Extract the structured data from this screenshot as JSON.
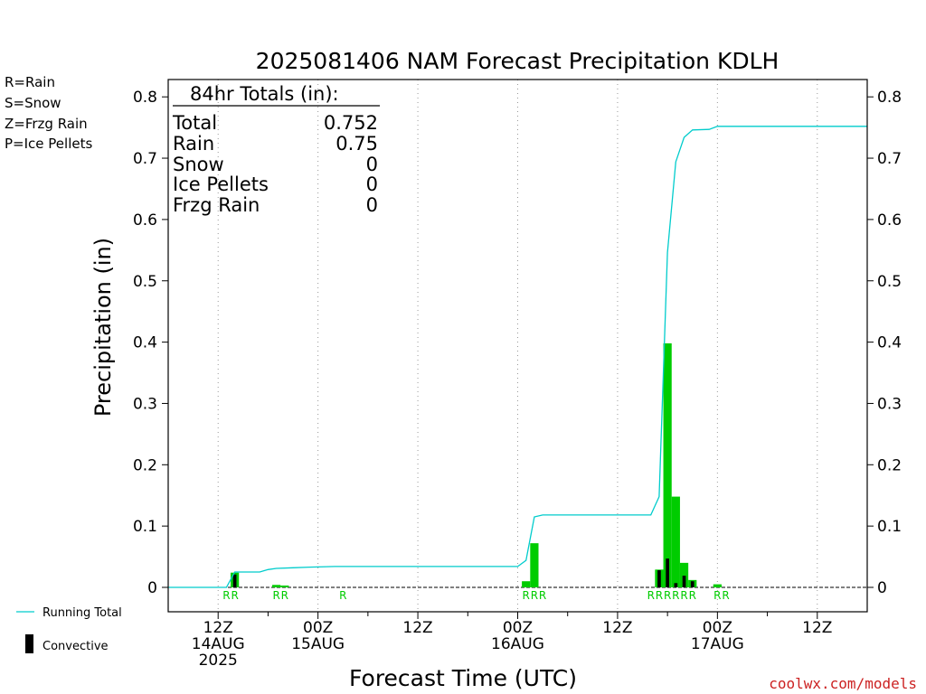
{
  "chart_data": {
    "type": "bar",
    "title": "2025081406 NAM Forecast Precipitation KDLH",
    "xlabel": "Forecast Time (UTC)",
    "ylabel": "Precipitation (in)",
    "ylim": [
      0,
      0.8
    ],
    "yticks": [
      "0",
      "0.1",
      "0.2",
      "0.3",
      "0.4",
      "0.5",
      "0.6",
      "0.7",
      "0.8"
    ],
    "xlim": [
      "2025-08-14 06Z",
      "2025-08-17 18Z"
    ],
    "grid": "x",
    "x_ticks": [
      {
        "line1": "12Z",
        "line2": "14AUG",
        "line3": "2025",
        "hour": 12
      },
      {
        "line1": "00Z",
        "line2": "15AUG",
        "line3": "",
        "hour": 24
      },
      {
        "line1": "12Z",
        "line2": "",
        "line3": "",
        "hour": 36
      },
      {
        "line1": "00Z",
        "line2": "16AUG",
        "line3": "",
        "hour": 48
      },
      {
        "line1": "12Z",
        "line2": "",
        "line3": "",
        "hour": 60
      },
      {
        "line1": "00Z",
        "line2": "17AUG",
        "line3": "",
        "hour": 72
      },
      {
        "line1": "12Z",
        "line2": "",
        "line3": "",
        "hour": 84
      }
    ],
    "precip_type_legend": [
      {
        "label": "R=Rain",
        "color": "#00cc00"
      },
      {
        "label": "S=Snow",
        "color": "#3333ff"
      },
      {
        "label": "Z=Frzg Rain",
        "color": "#ff8833"
      },
      {
        "label": "P=Ice Pellets",
        "color": "#ee1188"
      }
    ],
    "totals": {
      "header": "84hr Totals (in):",
      "rows": [
        {
          "label": "Total",
          "value": "0.752"
        },
        {
          "label": "Rain",
          "value": "0.75"
        },
        {
          "label": "Snow",
          "value": "0"
        },
        {
          "label": "Ice Pellets",
          "value": "0"
        },
        {
          "label": "Frzg Rain",
          "value": "0"
        }
      ]
    },
    "series": [
      {
        "name": "Precipitation",
        "color": "#00cc00",
        "points": [
          {
            "hour": 14,
            "value": 0.024
          },
          {
            "hour": 19,
            "value": 0.004
          },
          {
            "hour": 20,
            "value": 0.003
          },
          {
            "hour": 49,
            "value": 0.01
          },
          {
            "hour": 50,
            "value": 0.072
          },
          {
            "hour": 65,
            "value": 0.029
          },
          {
            "hour": 66,
            "value": 0.398
          },
          {
            "hour": 67,
            "value": 0.148
          },
          {
            "hour": 68,
            "value": 0.04
          },
          {
            "hour": 69,
            "value": 0.012
          },
          {
            "hour": 72,
            "value": 0.005
          }
        ]
      },
      {
        "name": "Convective",
        "color": "#000000",
        "points": [
          {
            "hour": 14,
            "value": 0.021
          },
          {
            "hour": 65,
            "value": 0.028
          },
          {
            "hour": 66,
            "value": 0.047
          },
          {
            "hour": 67,
            "value": 0.007
          },
          {
            "hour": 68,
            "value": 0.019
          },
          {
            "hour": 69,
            "value": 0.01
          }
        ]
      },
      {
        "name": "Running Total",
        "color": "#00cccc",
        "points": [
          {
            "hour": 6,
            "value": 0
          },
          {
            "hour": 13,
            "value": 0
          },
          {
            "hour": 14,
            "value": 0.025
          },
          {
            "hour": 17,
            "value": 0.025
          },
          {
            "hour": 18,
            "value": 0.029
          },
          {
            "hour": 19,
            "value": 0.031
          },
          {
            "hour": 21,
            "value": 0.032
          },
          {
            "hour": 23,
            "value": 0.033
          },
          {
            "hour": 26,
            "value": 0.034
          },
          {
            "hour": 48,
            "value": 0.034
          },
          {
            "hour": 49,
            "value": 0.044
          },
          {
            "hour": 50,
            "value": 0.115
          },
          {
            "hour": 51,
            "value": 0.118
          },
          {
            "hour": 64,
            "value": 0.118
          },
          {
            "hour": 65,
            "value": 0.148
          },
          {
            "hour": 66,
            "value": 0.546
          },
          {
            "hour": 67,
            "value": 0.694
          },
          {
            "hour": 68,
            "value": 0.734
          },
          {
            "hour": 69,
            "value": 0.746
          },
          {
            "hour": 71,
            "value": 0.747
          },
          {
            "hour": 72,
            "value": 0.752
          },
          {
            "hour": 73,
            "value": 0.752
          },
          {
            "hour": 90,
            "value": 0.752
          }
        ]
      }
    ],
    "precip_type_marks": [
      {
        "hour": 13,
        "label": "R"
      },
      {
        "hour": 14,
        "label": "R"
      },
      {
        "hour": 19,
        "label": "R"
      },
      {
        "hour": 20,
        "label": "R"
      },
      {
        "hour": 27,
        "label": "R"
      },
      {
        "hour": 49,
        "label": "R"
      },
      {
        "hour": 50,
        "label": "R"
      },
      {
        "hour": 51,
        "label": "R"
      },
      {
        "hour": 64,
        "label": "R"
      },
      {
        "hour": 65,
        "label": "R"
      },
      {
        "hour": 66,
        "label": "R"
      },
      {
        "hour": 67,
        "label": "R"
      },
      {
        "hour": 68,
        "label": "R"
      },
      {
        "hour": 69,
        "label": "R"
      },
      {
        "hour": 72,
        "label": "R"
      },
      {
        "hour": 73,
        "label": "R"
      }
    ],
    "bottom_legend": [
      {
        "label": "Running Total",
        "color": "#00cccc"
      },
      {
        "label": "Convective",
        "color": "#000000"
      }
    ],
    "credit": "coolwx.com/models"
  }
}
